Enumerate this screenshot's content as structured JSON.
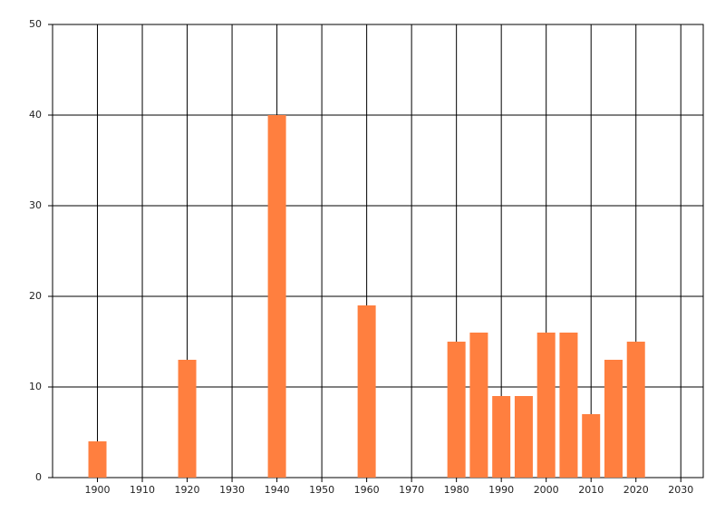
{
  "chart_data": {
    "type": "bar",
    "x": [
      1900,
      1920,
      1940,
      1960,
      1980,
      1985,
      1990,
      1995,
      2000,
      2005,
      2010,
      2015,
      2020
    ],
    "values": [
      4,
      13,
      40,
      19,
      15,
      16,
      9,
      9,
      16,
      16,
      7,
      13,
      15
    ],
    "color": "#ff7f3f",
    "xlim": [
      1890,
      2035
    ],
    "xticks": [
      1900,
      1910,
      1920,
      1930,
      1940,
      1950,
      1960,
      1970,
      1980,
      1990,
      2000,
      2010,
      2020,
      2030
    ],
    "ylim": [
      0,
      50
    ],
    "yticks": [
      0,
      10,
      20,
      30,
      40,
      50
    ],
    "grid": true
  }
}
